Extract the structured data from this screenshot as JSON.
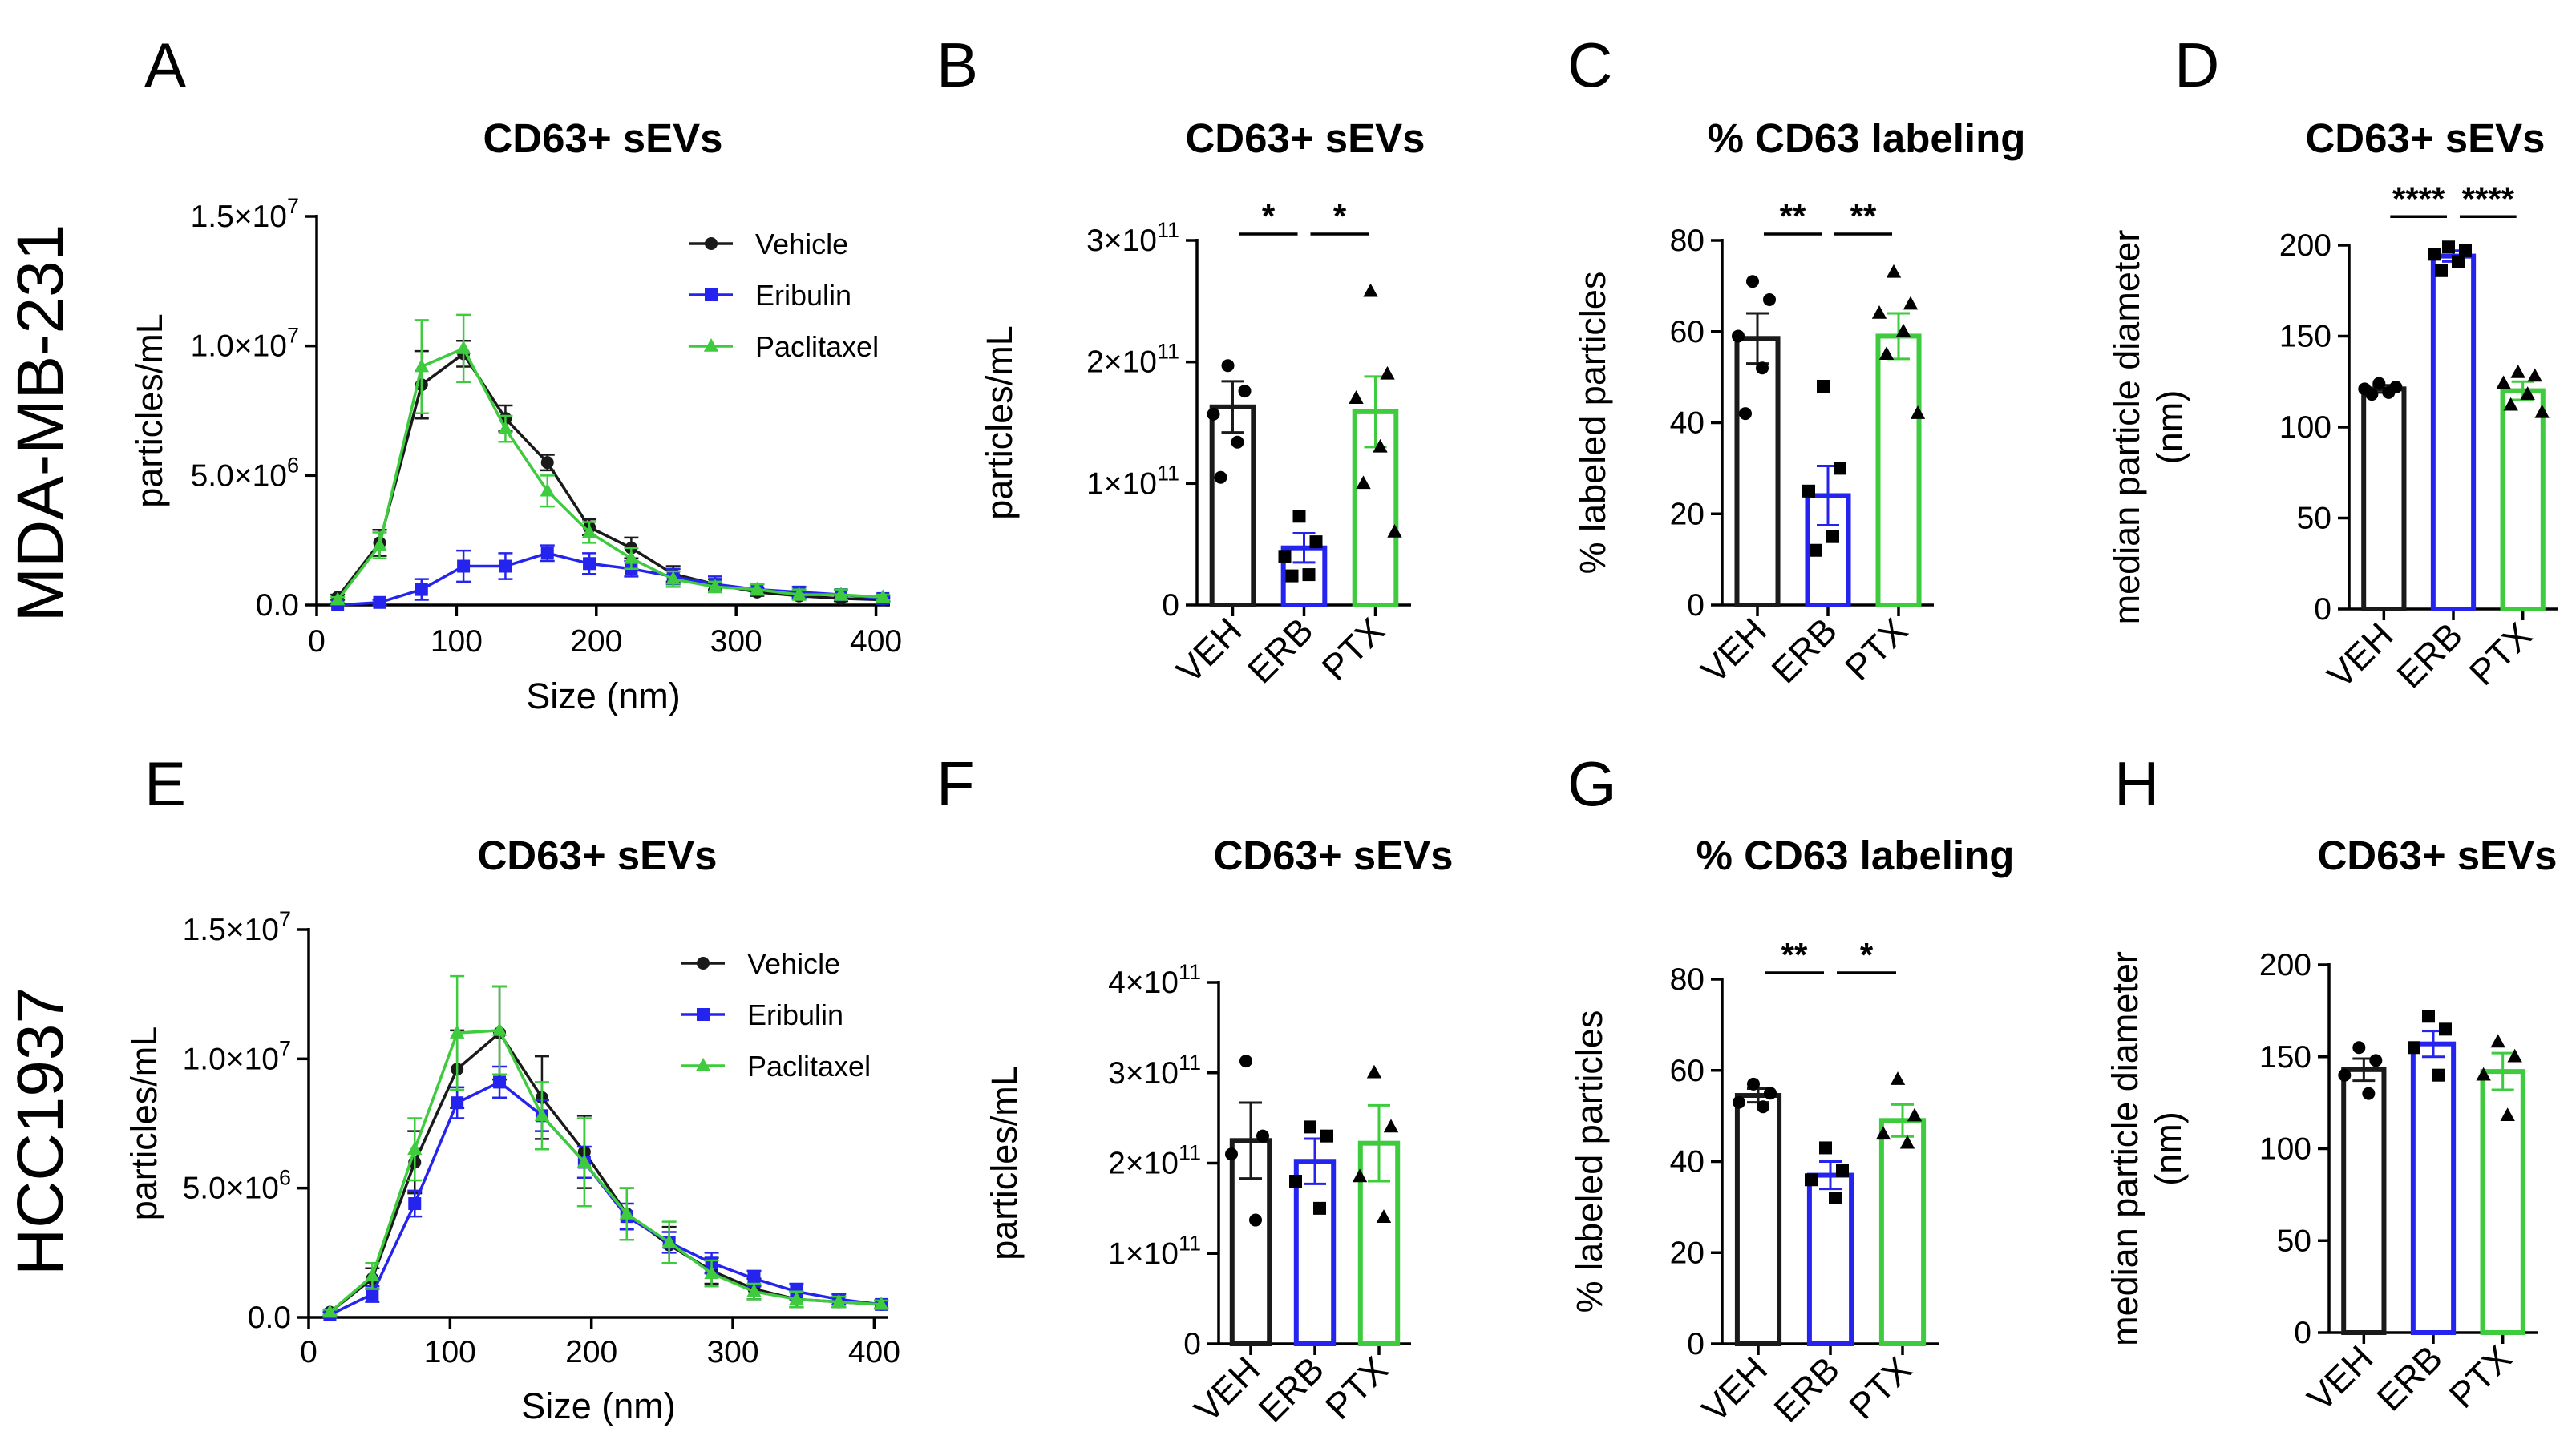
{
  "colors": {
    "vehicle": "#1a1a1a",
    "eribulin": "#2424ee",
    "paclitaxel": "#3ecb3e"
  },
  "row_labels": [
    "MDA-MB-231",
    "HCC1937"
  ],
  "chart_data": [
    {
      "panel": "A",
      "type": "line",
      "title": "CD63+ sEVs",
      "xlabel": "Size (nm)",
      "ylabel": "particles/mL",
      "xlim": [
        0,
        410
      ],
      "ylim": [
        0,
        15000000
      ],
      "xticks": [
        0,
        100,
        200,
        300,
        400
      ],
      "yticks": [
        {
          "v": 0,
          "label": "0.0"
        },
        {
          "v": 5000000,
          "label": "5.0×10",
          "exp": "6"
        },
        {
          "v": 10000000,
          "label": "1.0×10",
          "exp": "7"
        },
        {
          "v": 15000000,
          "label": "1.5×10",
          "exp": "7"
        }
      ],
      "legend": [
        "Vehicle",
        "Eribulin",
        "Paclitaxel"
      ],
      "x": [
        15,
        45,
        75,
        105,
        135,
        165,
        195,
        225,
        255,
        285,
        315,
        345,
        375,
        405
      ],
      "series": [
        {
          "name": "Vehicle",
          "values": [
            300000,
            2400000,
            8500000,
            9700000,
            7200000,
            5500000,
            3000000,
            2200000,
            1200000,
            800000,
            500000,
            350000,
            250000,
            200000
          ],
          "err": [
            100000,
            500000,
            1300000,
            500000,
            500000,
            300000,
            300000,
            400000,
            300000,
            200000,
            150000,
            100000,
            100000,
            80000
          ]
        },
        {
          "name": "Eribulin",
          "values": [
            0,
            100000,
            600000,
            1500000,
            1500000,
            2000000,
            1600000,
            1400000,
            1100000,
            800000,
            600000,
            500000,
            400000,
            250000
          ],
          "err": [
            50000,
            100000,
            400000,
            600000,
            500000,
            300000,
            400000,
            300000,
            300000,
            300000,
            200000,
            200000,
            200000,
            100000
          ]
        },
        {
          "name": "Paclitaxel",
          "values": [
            200000,
            2300000,
            9200000,
            9900000,
            6800000,
            4400000,
            2800000,
            1800000,
            1000000,
            700000,
            600000,
            400000,
            400000,
            300000
          ],
          "err": [
            100000,
            500000,
            1800000,
            1300000,
            500000,
            600000,
            400000,
            400000,
            300000,
            200000,
            200000,
            200000,
            200000,
            100000
          ]
        }
      ]
    },
    {
      "panel": "B",
      "type": "bar",
      "title": "CD63+ sEVs",
      "ylabel": "particles/mL",
      "categories": [
        "VEH",
        "ERB",
        "PTX"
      ],
      "ylim": [
        0,
        300000000000
      ],
      "yticks": [
        {
          "v": 0,
          "label": "0"
        },
        {
          "v": 100000000000,
          "label": "1×10",
          "exp": "11"
        },
        {
          "v": 200000000000,
          "label": "2×10",
          "exp": "11"
        },
        {
          "v": 300000000000,
          "label": "3×10",
          "exp": "11"
        }
      ],
      "values": [
        163000000000,
        47000000000,
        159000000000
      ],
      "sem": [
        21000000000,
        12000000000,
        29000000000
      ],
      "points": [
        [
          197000000000,
          176000000000,
          157000000000,
          134000000000,
          105000000000
        ],
        [
          73000000000,
          52000000000,
          40000000000,
          25000000000,
          24000000000
        ],
        [
          258000000000,
          190000000000,
          170000000000,
          130000000000,
          100000000000,
          60000000000
        ]
      ],
      "sig": [
        {
          "from": 0,
          "to": 1,
          "label": "*"
        },
        {
          "from": 1,
          "to": 2,
          "label": "*"
        }
      ]
    },
    {
      "panel": "C",
      "type": "bar",
      "title": "% CD63 labeling",
      "ylabel": "% labeled particles",
      "categories": [
        "VEH",
        "ERB",
        "PTX"
      ],
      "ylim": [
        0,
        80
      ],
      "yticks": [
        {
          "v": 0,
          "label": "0"
        },
        {
          "v": 20,
          "label": "20"
        },
        {
          "v": 40,
          "label": "40"
        },
        {
          "v": 60,
          "label": "60"
        },
        {
          "v": 80,
          "label": "80"
        }
      ],
      "values": [
        58.5,
        24,
        59
      ],
      "sem": [
        5.5,
        6.5,
        5
      ],
      "points": [
        [
          71,
          67,
          59,
          52,
          42
        ],
        [
          48,
          30,
          25,
          15,
          12
        ],
        [
          73,
          66,
          64,
          60,
          55,
          42
        ]
      ],
      "sig": [
        {
          "from": 0,
          "to": 1,
          "label": "**"
        },
        {
          "from": 1,
          "to": 2,
          "label": "**"
        }
      ]
    },
    {
      "panel": "D",
      "type": "bar",
      "title": "CD63+ sEVs",
      "ylabel": "median particle diameter (nm)",
      "categories": [
        "VEH",
        "ERB",
        "PTX"
      ],
      "ylim": [
        0,
        200
      ],
      "yticks": [
        {
          "v": 0,
          "label": "0"
        },
        {
          "v": 50,
          "label": "50"
        },
        {
          "v": 100,
          "label": "100"
        },
        {
          "v": 150,
          "label": "150"
        },
        {
          "v": 200,
          "label": "200"
        }
      ],
      "values": [
        121,
        194,
        120
      ],
      "sem": [
        2,
        3,
        5
      ],
      "points": [
        [
          124,
          122,
          121,
          119,
          118
        ],
        [
          199,
          197,
          195,
          191,
          186
        ],
        [
          130,
          128,
          124,
          118,
          112,
          108
        ]
      ],
      "sig": [
        {
          "from": 0,
          "to": 1,
          "label": "****"
        },
        {
          "from": 1,
          "to": 2,
          "label": "****"
        }
      ]
    },
    {
      "panel": "E",
      "type": "line",
      "title": "CD63+ sEVs",
      "xlabel": "Size (nm)",
      "ylabel": "particles/mL",
      "xlim": [
        0,
        410
      ],
      "ylim": [
        0,
        15000000
      ],
      "xticks": [
        0,
        100,
        200,
        300,
        400
      ],
      "yticks": [
        {
          "v": 0,
          "label": "0.0"
        },
        {
          "v": 5000000,
          "label": "5.0×10",
          "exp": "6"
        },
        {
          "v": 10000000,
          "label": "1.0×10",
          "exp": "7"
        },
        {
          "v": 15000000,
          "label": "1.5×10",
          "exp": "7"
        }
      ],
      "legend": [
        "Vehicle",
        "Eribulin",
        "Paclitaxel"
      ],
      "x": [
        15,
        45,
        75,
        105,
        135,
        165,
        195,
        225,
        255,
        285,
        315,
        345,
        375,
        405
      ],
      "series": [
        {
          "name": "Vehicle",
          "values": [
            200000,
            1500000,
            6000000,
            9600000,
            11000000,
            8500000,
            6400000,
            4000000,
            2800000,
            1800000,
            1100000,
            700000,
            600000,
            500000
          ],
          "err": [
            100000,
            400000,
            1200000,
            1500000,
            1800000,
            1600000,
            1400000,
            1000000,
            700000,
            500000,
            400000,
            300000,
            200000,
            150000
          ]
        },
        {
          "name": "Eribulin",
          "values": [
            100000,
            900000,
            4400000,
            8300000,
            9100000,
            7800000,
            6000000,
            3900000,
            2900000,
            2100000,
            1500000,
            1000000,
            700000,
            500000
          ],
          "err": [
            100000,
            300000,
            500000,
            600000,
            600000,
            600000,
            600000,
            500000,
            400000,
            400000,
            300000,
            300000,
            200000,
            150000
          ]
        },
        {
          "name": "Paclitaxel",
          "values": [
            200000,
            1600000,
            6500000,
            11000000,
            11100000,
            7800000,
            6000000,
            4000000,
            2900000,
            1700000,
            1000000,
            700000,
            600000,
            500000
          ],
          "err": [
            100000,
            500000,
            1200000,
            2200000,
            1700000,
            1300000,
            1700000,
            1000000,
            800000,
            500000,
            300000,
            300000,
            200000,
            150000
          ]
        }
      ]
    },
    {
      "panel": "F",
      "type": "bar",
      "title": "CD63+ sEVs",
      "ylabel": "particles/mL",
      "categories": [
        "VEH",
        "ERB",
        "PTX"
      ],
      "ylim": [
        0,
        400000000000
      ],
      "yticks": [
        {
          "v": 0,
          "label": "0"
        },
        {
          "v": 100000000000,
          "label": "1×10",
          "exp": "11"
        },
        {
          "v": 200000000000,
          "label": "2×10",
          "exp": "11"
        },
        {
          "v": 300000000000,
          "label": "3×10",
          "exp": "11"
        },
        {
          "v": 400000000000,
          "label": "4×10",
          "exp": "11"
        }
      ],
      "values": [
        225000000000,
        202000000000,
        222000000000
      ],
      "sem": [
        42000000000,
        25000000000,
        42000000000
      ],
      "points": [
        [
          313000000000,
          230000000000,
          210000000000,
          137000000000
        ],
        [
          240000000000,
          230000000000,
          180000000000,
          150000000000
        ],
        [
          300000000000,
          240000000000,
          185000000000,
          140000000000
        ]
      ],
      "sig": []
    },
    {
      "panel": "G",
      "type": "bar",
      "title": "% CD63 labeling",
      "ylabel": "% labeled particles",
      "categories": [
        "VEH",
        "ERB",
        "PTX"
      ],
      "ylim": [
        0,
        80
      ],
      "yticks": [
        {
          "v": 0,
          "label": "0"
        },
        {
          "v": 20,
          "label": "20"
        },
        {
          "v": 40,
          "label": "40"
        },
        {
          "v": 60,
          "label": "60"
        },
        {
          "v": 80,
          "label": "80"
        }
      ],
      "values": [
        54.5,
        37,
        49
      ],
      "sem": [
        1.5,
        3,
        3.5
      ],
      "points": [
        [
          57,
          55,
          53,
          52
        ],
        [
          43,
          38,
          36,
          32
        ],
        [
          58,
          50,
          46,
          44
        ]
      ],
      "sig": [
        {
          "from": 0,
          "to": 1,
          "label": "**"
        },
        {
          "from": 1,
          "to": 2,
          "label": "*"
        }
      ]
    },
    {
      "panel": "H",
      "type": "bar",
      "title": "CD63+ sEVs",
      "ylabel": "median particle diameter (nm)",
      "categories": [
        "VEH",
        "ERB",
        "PTX"
      ],
      "ylim": [
        0,
        200
      ],
      "yticks": [
        {
          "v": 0,
          "label": "0"
        },
        {
          "v": 50,
          "label": "50"
        },
        {
          "v": 100,
          "label": "100"
        },
        {
          "v": 150,
          "label": "150"
        },
        {
          "v": 200,
          "label": "200"
        }
      ],
      "values": [
        143,
        157,
        142
      ],
      "sem": [
        6,
        7,
        10
      ],
      "points": [
        [
          155,
          148,
          140,
          130
        ],
        [
          172,
          165,
          155,
          140
        ],
        [
          158,
          150,
          140,
          118
        ]
      ],
      "sig": []
    }
  ]
}
